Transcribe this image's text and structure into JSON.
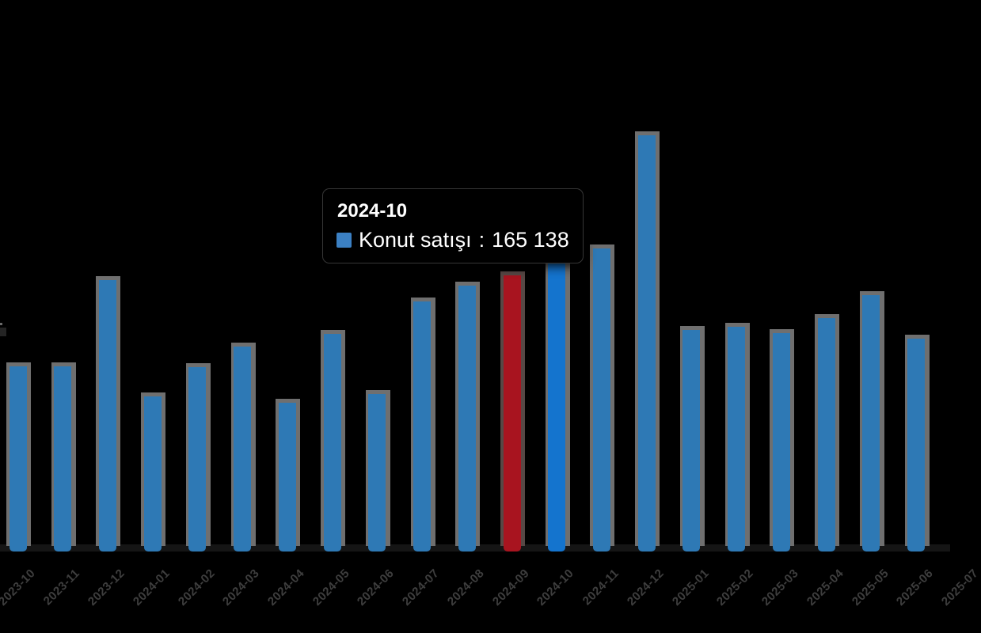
{
  "page": {
    "background": "#000000"
  },
  "tooltip": {
    "title": "2024-10",
    "series_label": "Konut satışı",
    "separator": ": ",
    "value": "165 138",
    "swatch_color": "#3b80c3"
  },
  "colors": {
    "bar_fill": "#2e79b5",
    "bar_border": "#6f6f6f",
    "bar_red_fill": "#a8141f",
    "bar_red_border": "#574845",
    "bar_highlight_fill": "#1474ce",
    "axis_line": "#151515",
    "axis_label": "#3e3e3e",
    "tooltip_bg": "#000000",
    "tooltip_text": "#ffffff",
    "background": "#000000"
  },
  "chart_data": {
    "type": "bar",
    "title": "",
    "categories": [
      "2023-10",
      "2023-11",
      "2023-12",
      "2024-01",
      "2024-02",
      "2024-03",
      "2024-04",
      "2024-05",
      "2024-06",
      "2024-07",
      "2024-08",
      "2024-09",
      "2024-10",
      "2024-11",
      "2024-12",
      "2025-01",
      "2025-02",
      "2025-03",
      "2025-04",
      "2025-05",
      "2025-06"
    ],
    "series": [
      {
        "name": "Konut satışı",
        "values": [
          94500,
          94500,
          138500,
          79000,
          94000,
          104500,
          76000,
          111000,
          80500,
          127500,
          135500,
          141000,
          165138,
          154500,
          212500,
          113000,
          114500,
          111500,
          119000,
          131000,
          108500
        ]
      }
    ],
    "red_category": "2024-09",
    "highlighted_category": "2024-10",
    "highlighted_value_exact": 165138,
    "clipped_next_category": "2025-07",
    "xlabel_rotation": -45,
    "legend": "none",
    "grid": false,
    "ylim": [
      0,
      230000
    ]
  }
}
